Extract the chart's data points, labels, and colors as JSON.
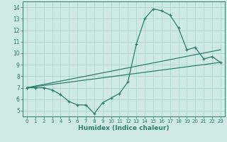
{
  "xlabel": "Humidex (Indice chaleur)",
  "xlim": [
    -0.5,
    23.5
  ],
  "ylim": [
    4.5,
    14.5
  ],
  "xticks": [
    0,
    1,
    2,
    3,
    4,
    5,
    6,
    7,
    8,
    9,
    10,
    11,
    12,
    13,
    14,
    15,
    16,
    17,
    18,
    19,
    20,
    21,
    22,
    23
  ],
  "yticks": [
    5,
    6,
    7,
    8,
    9,
    10,
    11,
    12,
    13,
    14
  ],
  "bg_color": "#cfe9e9",
  "grid_color": "#b0d8d8",
  "line_color": "#2d7d6e",
  "line1_x": [
    0,
    1,
    2,
    3,
    4,
    5,
    6,
    7,
    8,
    9,
    10,
    11,
    12,
    13,
    14,
    15,
    16,
    17,
    18,
    19,
    20,
    21,
    22,
    23
  ],
  "line1_y": [
    7.0,
    7.0,
    7.0,
    6.8,
    6.4,
    5.8,
    5.5,
    5.5,
    4.75,
    5.7,
    6.1,
    6.5,
    7.5,
    10.8,
    13.0,
    13.85,
    13.7,
    13.3,
    12.2,
    10.3,
    10.5,
    9.5,
    9.7,
    9.2
  ],
  "line2_x": [
    0,
    23
  ],
  "line2_y": [
    7.0,
    9.2
  ],
  "line3_x": [
    0,
    23
  ],
  "line3_y": [
    7.0,
    10.3
  ]
}
